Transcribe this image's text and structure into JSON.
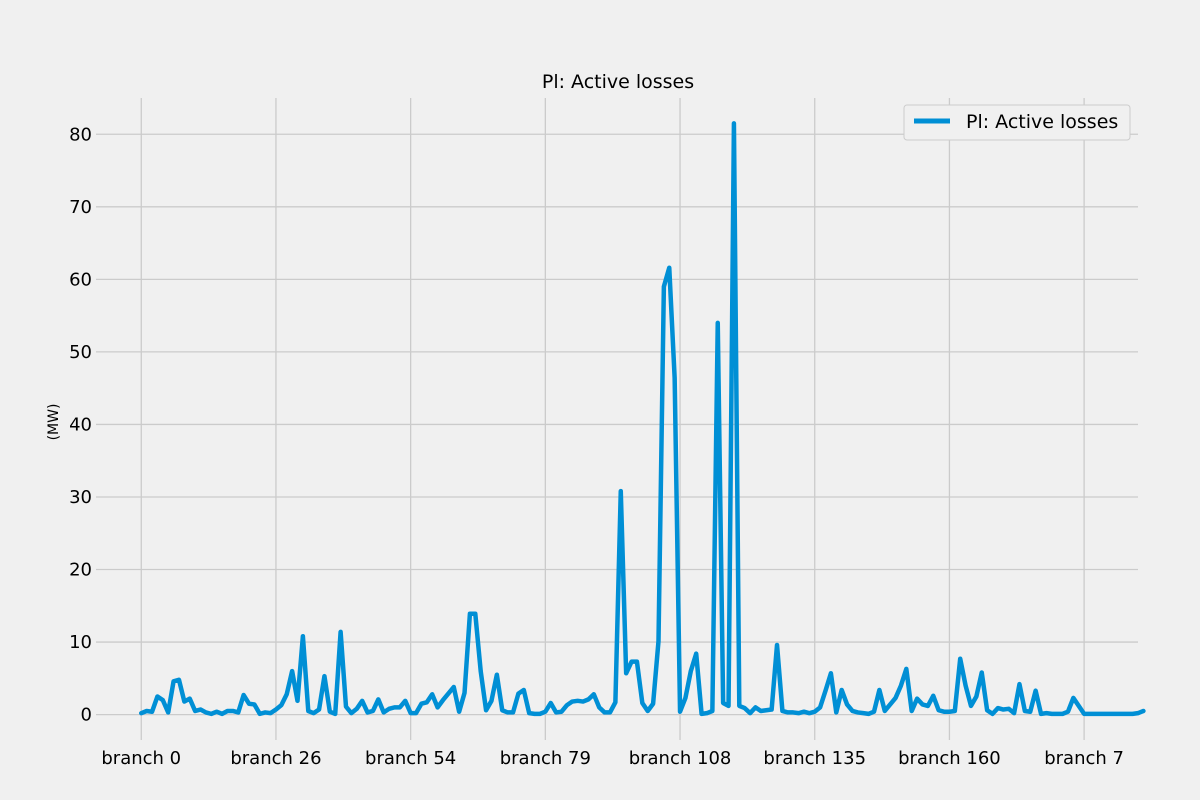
{
  "chart_data": {
    "type": "line",
    "title": "Pl: Active losses",
    "xlabel": "",
    "ylabel": "(MW)",
    "xlim": [
      -8.4,
      185
    ],
    "ylim": [
      -3.5,
      85
    ],
    "yticks": [
      0,
      10,
      20,
      30,
      40,
      50,
      60,
      70,
      80
    ],
    "xtick_positions": [
      0,
      25,
      50,
      75,
      100,
      125,
      150,
      175
    ],
    "xtick_labels": [
      "branch 0",
      "branch 26",
      "branch 54",
      "branch 79",
      "branch 108",
      "branch 135",
      "branch 160",
      "branch 7"
    ],
    "grid": true,
    "legend_position": "top-right",
    "series": [
      {
        "name": "Pl: Active losses",
        "color": "#008fd5",
        "values": [
          0.2,
          0.5,
          0.4,
          2.5,
          2.0,
          0.3,
          4.6,
          4.8,
          1.8,
          2.2,
          0.5,
          0.7,
          0.3,
          0.1,
          0.4,
          0.1,
          0.5,
          0.5,
          0.3,
          2.7,
          1.5,
          1.4,
          0.1,
          0.3,
          0.2,
          0.7,
          1.3,
          2.8,
          6.0,
          1.9,
          10.8,
          0.5,
          0.2,
          0.7,
          5.3,
          0.4,
          0.1,
          11.4,
          1.1,
          0.2,
          0.8,
          1.9,
          0.3,
          0.5,
          2.1,
          0.3,
          0.8,
          1.0,
          1.0,
          1.9,
          0.2,
          0.2,
          1.5,
          1.7,
          2.8,
          1.0,
          2.0,
          2.9,
          3.8,
          0.4,
          3.0,
          13.9,
          13.9,
          6.0,
          0.6,
          1.9,
          5.5,
          0.6,
          0.3,
          0.3,
          2.9,
          3.4,
          0.2,
          0.1,
          0.1,
          0.4,
          1.6,
          0.3,
          0.4,
          1.3,
          1.8,
          1.9,
          1.8,
          2.1,
          2.8,
          1.0,
          0.3,
          0.3,
          1.7,
          30.8,
          5.7,
          7.3,
          7.3,
          1.6,
          0.5,
          1.5,
          10.1,
          59.0,
          61.6,
          46.4,
          0.4,
          2.3,
          6.0,
          8.4,
          0.1,
          0.2,
          0.5,
          54.0,
          1.6,
          1.2,
          81.5,
          1.2,
          0.9,
          0.2,
          1.0,
          0.5,
          0.6,
          0.7,
          9.6,
          0.5,
          0.3,
          0.3,
          0.2,
          0.4,
          0.2,
          0.4,
          1.0,
          3.3,
          5.7,
          0.3,
          3.4,
          1.4,
          0.5,
          0.3,
          0.2,
          0.1,
          0.4,
          3.4,
          0.5,
          1.4,
          2.3,
          4.0,
          6.3,
          0.5,
          2.2,
          1.4,
          1.2,
          2.6,
          0.6,
          0.4,
          0.4,
          0.5,
          7.7,
          4.0,
          1.2,
          2.5,
          5.8,
          0.6,
          0.1,
          0.9,
          0.7,
          0.8,
          0.2,
          4.2,
          0.5,
          0.4,
          3.3,
          0.1,
          0.2,
          0.1,
          0.1,
          0.1,
          0.4,
          2.3,
          1.2,
          0.1,
          0.1,
          0.1,
          0.1,
          0.1,
          0.1,
          0.1,
          0.1,
          0.1,
          0.1,
          0.2,
          0.5
        ]
      }
    ]
  }
}
